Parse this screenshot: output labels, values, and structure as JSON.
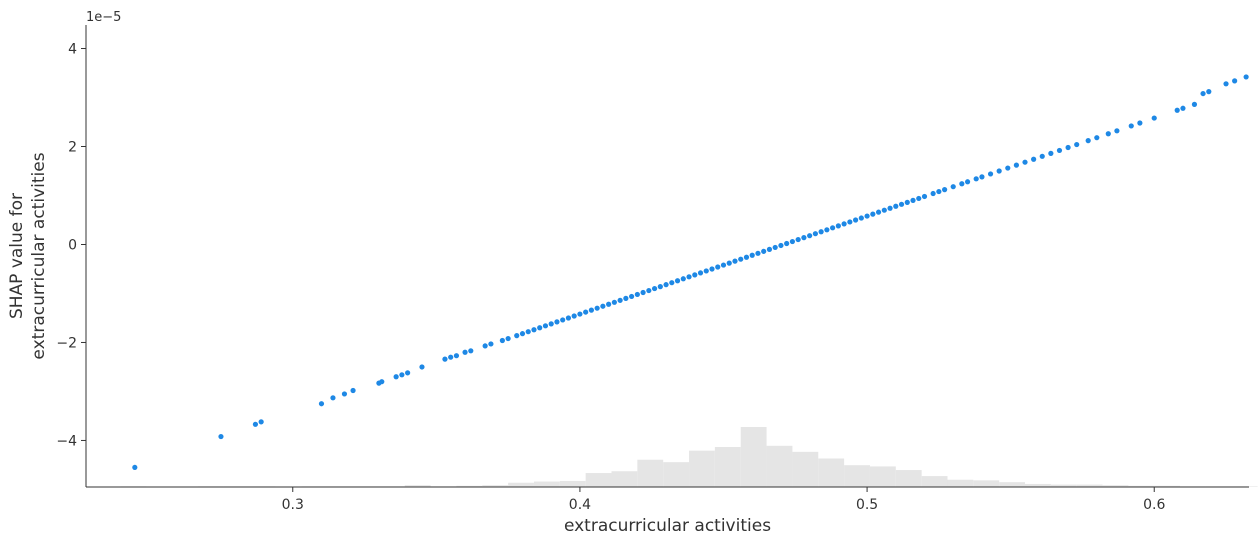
{
  "chart_data": {
    "type": "scatter",
    "title": "",
    "xlabel": "extracurricular activities",
    "ylabel_lines": [
      "SHAP value for",
      "extracurricular activities"
    ],
    "y_offset_label": "1e−5",
    "xlim": [
      0.228,
      0.633
    ],
    "ylim": [
      -4.95,
      4.48
    ],
    "xticks": [
      0.3,
      0.4,
      0.5,
      0.6
    ],
    "xtick_labels": [
      "0.3",
      "0.4",
      "0.5",
      "0.6"
    ],
    "yticks": [
      -4,
      -2,
      0,
      2,
      4
    ],
    "ytick_labels": [
      "−4",
      "−2",
      "0",
      "2",
      "4"
    ],
    "grid": false,
    "legend": "none",
    "colors": {
      "points": "#1e88e5",
      "histogram": "#e5e5e5",
      "axis": "#333333"
    },
    "series": [
      {
        "x": [
          0.245,
          0.275,
          0.287,
          0.289,
          0.31,
          0.314,
          0.318,
          0.321,
          0.33,
          0.331,
          0.336,
          0.338,
          0.34,
          0.345,
          0.353,
          0.355,
          0.357,
          0.36,
          0.362,
          0.367,
          0.369,
          0.373,
          0.375,
          0.378,
          0.38,
          0.382,
          0.384,
          0.386,
          0.388,
          0.39,
          0.392,
          0.394,
          0.396,
          0.398,
          0.4,
          0.402,
          0.404,
          0.406,
          0.408,
          0.41,
          0.412,
          0.414,
          0.416,
          0.418,
          0.42,
          0.422,
          0.424,
          0.426,
          0.428,
          0.43,
          0.432,
          0.434,
          0.436,
          0.438,
          0.44,
          0.442,
          0.444,
          0.446,
          0.448,
          0.45,
          0.452,
          0.454,
          0.456,
          0.458,
          0.46,
          0.462,
          0.464,
          0.466,
          0.468,
          0.47,
          0.472,
          0.474,
          0.476,
          0.478,
          0.48,
          0.482,
          0.484,
          0.486,
          0.488,
          0.49,
          0.492,
          0.494,
          0.496,
          0.498,
          0.5,
          0.502,
          0.504,
          0.506,
          0.508,
          0.51,
          0.512,
          0.514,
          0.516,
          0.518,
          0.52,
          0.523,
          0.525,
          0.527,
          0.53,
          0.533,
          0.535,
          0.538,
          0.54,
          0.543,
          0.546,
          0.549,
          0.552,
          0.555,
          0.558,
          0.561,
          0.564,
          0.567,
          0.57,
          0.573,
          0.577,
          0.58,
          0.584,
          0.587,
          0.592,
          0.595,
          0.6,
          0.608,
          0.61,
          0.614,
          0.617,
          0.619,
          0.625,
          0.628,
          0.632
        ],
        "y": [
          -4.55,
          -3.92,
          -3.67,
          -3.62,
          -3.25,
          -3.13,
          -3.05,
          -2.98,
          -2.83,
          -2.8,
          -2.7,
          -2.66,
          -2.62,
          -2.5,
          -2.34,
          -2.3,
          -2.27,
          -2.2,
          -2.17,
          -2.07,
          -2.03,
          -1.96,
          -1.92,
          -1.86,
          -1.82,
          -1.78,
          -1.74,
          -1.7,
          -1.66,
          -1.62,
          -1.58,
          -1.54,
          -1.5,
          -1.46,
          -1.42,
          -1.38,
          -1.34,
          -1.3,
          -1.26,
          -1.22,
          -1.18,
          -1.14,
          -1.1,
          -1.06,
          -1.02,
          -0.98,
          -0.94,
          -0.9,
          -0.86,
          -0.82,
          -0.78,
          -0.74,
          -0.7,
          -0.66,
          -0.62,
          -0.58,
          -0.54,
          -0.5,
          -0.46,
          -0.42,
          -0.38,
          -0.34,
          -0.3,
          -0.26,
          -0.22,
          -0.18,
          -0.14,
          -0.1,
          -0.06,
          -0.02,
          0.02,
          0.06,
          0.1,
          0.14,
          0.18,
          0.22,
          0.26,
          0.3,
          0.34,
          0.38,
          0.42,
          0.46,
          0.5,
          0.54,
          0.58,
          0.62,
          0.66,
          0.7,
          0.74,
          0.78,
          0.82,
          0.86,
          0.9,
          0.94,
          0.98,
          1.04,
          1.08,
          1.12,
          1.18,
          1.24,
          1.28,
          1.34,
          1.38,
          1.44,
          1.5,
          1.56,
          1.62,
          1.68,
          1.74,
          1.8,
          1.86,
          1.92,
          1.98,
          2.04,
          2.12,
          2.18,
          2.26,
          2.32,
          2.42,
          2.48,
          2.58,
          2.74,
          2.78,
          2.86,
          3.08,
          3.12,
          3.28,
          3.34,
          3.42
        ]
      }
    ],
    "histogram": {
      "bins": [
        0.24,
        0.249,
        0.258,
        0.267,
        0.276,
        0.285,
        0.294,
        0.303,
        0.312,
        0.321,
        0.33,
        0.339,
        0.348,
        0.357,
        0.366,
        0.375,
        0.384,
        0.393,
        0.402,
        0.411,
        0.42,
        0.429,
        0.438,
        0.447,
        0.456,
        0.465,
        0.474,
        0.483,
        0.492,
        0.501,
        0.51,
        0.519,
        0.528,
        0.537,
        0.546,
        0.555,
        0.564,
        0.573,
        0.582,
        0.591,
        0.6,
        0.609,
        0.618,
        0.627,
        0.636
      ],
      "counts": [
        1,
        0,
        0,
        1,
        1,
        1,
        0,
        1,
        1,
        1,
        1,
        3,
        1,
        2,
        3,
        7,
        9,
        10,
        23,
        26,
        45,
        41,
        60,
        66,
        99,
        68,
        58,
        47,
        36,
        34,
        28,
        18,
        12,
        11,
        8,
        5,
        4,
        4,
        3,
        2,
        2,
        1,
        1,
        1
      ]
    }
  }
}
